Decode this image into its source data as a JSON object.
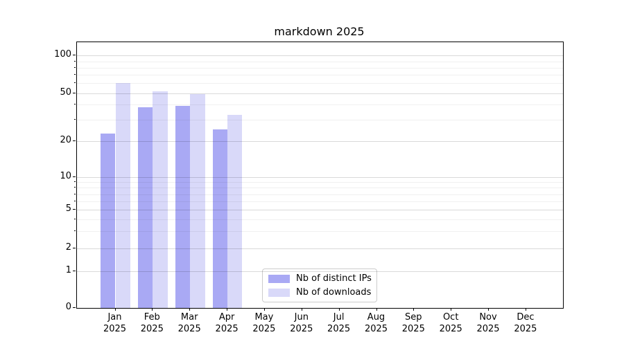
{
  "chart_data": {
    "type": "bar",
    "title": "markdown 2025",
    "categories": [
      "Jan",
      "Feb",
      "Mar",
      "Apr",
      "May",
      "Jun",
      "Jul",
      "Aug",
      "Sep",
      "Oct",
      "Nov",
      "Dec"
    ],
    "category_year": "2025",
    "series": [
      {
        "name": "Nb of distinct IPs",
        "color": "#a9a9f4",
        "values": [
          23,
          38,
          39,
          25,
          null,
          null,
          null,
          null,
          null,
          null,
          null,
          null
        ]
      },
      {
        "name": "Nb of downloads",
        "color": "#d9d9f9",
        "values": [
          60,
          52,
          49,
          33,
          null,
          null,
          null,
          null,
          null,
          null,
          null,
          null
        ]
      }
    ],
    "yscale": "symlog",
    "yticks": [
      0,
      1,
      2,
      5,
      10,
      20,
      50,
      100
    ],
    "ytick_labels": [
      "0",
      "1",
      "2",
      "5",
      "10",
      "20",
      "50",
      "100"
    ],
    "minor_yticks": [
      3,
      4,
      6,
      7,
      8,
      9,
      30,
      40,
      60,
      70,
      80,
      90
    ],
    "ylim": [
      0,
      128
    ],
    "grid": "both",
    "legend_position": "lower-center-inside",
    "colors": {
      "axis": "#000000",
      "grid_major": "rgba(0,0,0,0.15)",
      "grid_minor": "rgba(0,0,0,0.06)",
      "legend_border": "#cccccc",
      "background": "#ffffff"
    }
  }
}
